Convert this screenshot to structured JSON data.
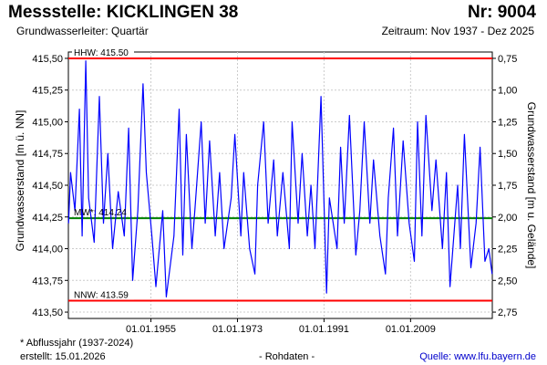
{
  "header": {
    "title": "Messstelle: KICKLINGEN 38",
    "number": "Nr: 9004",
    "subtitle": "Grundwasserleiter: Quartär",
    "period": "Zeitraum: Nov 1937 - Dez 2025"
  },
  "footer": {
    "note": "* Abflussjahr (1937-2024)",
    "created": "erstellt:  15.01.2026",
    "raw": "- Rohdaten -",
    "source": "Quelle:  www.lfu.bayern.de"
  },
  "colors": {
    "series": "#0000ff",
    "extreme_lines": "#ff0000",
    "mean_line": "#008000",
    "grid": "#cccccc"
  },
  "chart_data": {
    "type": "line",
    "ylabel": "Grundwasserstand [m ü. NN]",
    "ylabel_right": "Grundwasserstand [m u. Gelände]",
    "ylim": [
      413.5,
      415.55
    ],
    "yticks": [
      "415,50",
      "415,25",
      "415,00",
      "414,75",
      "414,50",
      "414,25",
      "414,00",
      "413,75",
      "413,50"
    ],
    "yticks_right": [
      "0,75",
      "1,00",
      "1,25",
      "1,50",
      "1,75",
      "2,00",
      "2,25",
      "2,50",
      "2,75"
    ],
    "xlim": [
      "1937-11-01",
      "2025-12-31"
    ],
    "xticks": [
      "01.01.1955",
      "01.01.1973",
      "01.01.1991",
      "01.01.2009"
    ],
    "grid": true,
    "reference_lines": [
      {
        "label": "HHW: 415.50",
        "value": 415.5
      },
      {
        "label": "MW*: 414.24",
        "value": 414.24
      },
      {
        "label": "NNW: 413.59",
        "value": 413.59
      }
    ],
    "series": [
      {
        "x": [
          "1937-11",
          "1938-04",
          "1939-03",
          "1940-02",
          "1940-09",
          "1941-06",
          "1942-01",
          "1943-03",
          "1944-04",
          "1945-02",
          "1946-01",
          "1947-01",
          "1948-03",
          "1949-06",
          "1950-05",
          "1951-03",
          "1952-04",
          "1953-05",
          "1954-01",
          "1955-03",
          "1956-01",
          "1957-06",
          "1958-03",
          "1959-10",
          "1960-11",
          "1961-08",
          "1962-05",
          "1963-07",
          "1964-02",
          "1965-06",
          "1966-04",
          "1967-03",
          "1968-05",
          "1969-04",
          "1970-03",
          "1971-09",
          "1972-06",
          "1973-09",
          "1974-04",
          "1975-07",
          "1976-08",
          "1977-03",
          "1978-06",
          "1979-05",
          "1980-07",
          "1981-04",
          "1982-06",
          "1983-10",
          "1984-05",
          "1985-08",
          "1986-06",
          "1987-07",
          "1988-04",
          "1989-02",
          "1990-05",
          "1991-07",
          "1992-02",
          "1993-09",
          "1994-06",
          "1995-03",
          "1996-04",
          "1997-08",
          "1998-06",
          "1999-05",
          "2000-07",
          "2001-04",
          "2002-08",
          "2003-10",
          "2004-05",
          "2005-06",
          "2006-04",
          "2007-06",
          "2008-09",
          "2009-10",
          "2010-06",
          "2011-05",
          "2012-03",
          "2013-06",
          "2014-04",
          "2015-08",
          "2016-06",
          "2017-03",
          "2018-10",
          "2019-05",
          "2020-03",
          "2021-07",
          "2022-08",
          "2023-06",
          "2024-06",
          "2025-04",
          "2025-12"
        ],
        "y": [
          414.2,
          414.6,
          414.3,
          415.1,
          414.1,
          415.48,
          414.4,
          414.05,
          415.2,
          414.2,
          414.75,
          414.0,
          414.45,
          414.1,
          414.95,
          413.75,
          414.3,
          415.3,
          414.6,
          414.1,
          413.7,
          414.3,
          413.62,
          414.1,
          415.1,
          413.95,
          414.9,
          414.0,
          414.3,
          415.0,
          414.2,
          414.85,
          414.1,
          414.6,
          414.0,
          414.4,
          414.9,
          414.1,
          414.6,
          414.0,
          413.8,
          414.5,
          415.0,
          414.2,
          414.7,
          414.1,
          414.6,
          414.0,
          415.0,
          414.2,
          414.75,
          414.1,
          414.5,
          414.0,
          415.2,
          413.65,
          414.4,
          414.0,
          414.8,
          414.2,
          415.05,
          413.95,
          414.3,
          415.0,
          414.2,
          414.7,
          414.1,
          413.8,
          414.4,
          414.95,
          414.1,
          414.85,
          414.2,
          413.9,
          415.0,
          414.1,
          415.05,
          414.3,
          414.7,
          414.0,
          414.6,
          413.7,
          414.5,
          414.0,
          414.9,
          413.85,
          414.2,
          414.8,
          413.9,
          414.0,
          413.8
        ]
      }
    ]
  }
}
